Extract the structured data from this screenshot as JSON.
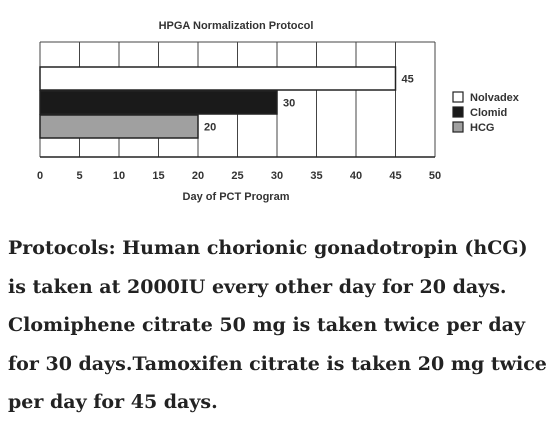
{
  "chart_data": {
    "type": "bar",
    "orientation": "horizontal",
    "title": "HPGA Normalization Protocol",
    "xlabel": "Day of PCT Program",
    "ylabel": "",
    "xlim": [
      0,
      50
    ],
    "xticks": [
      0,
      5,
      10,
      15,
      20,
      25,
      30,
      35,
      40,
      45,
      50
    ],
    "grid": "vertical",
    "legend_position": "right",
    "series": [
      {
        "name": "Nolvadex",
        "value": 45,
        "label": "45",
        "color": "#ffffff"
      },
      {
        "name": "Clomid",
        "value": 30,
        "label": "30",
        "color": "#1a1a1a"
      },
      {
        "name": "HCG",
        "value": 20,
        "label": "20",
        "color": "#a0a0a0"
      }
    ]
  },
  "caption": {
    "text": "Protocols: Human chorionic gonadotropin (hCG) is taken at 2000IU every other day for 20 days. Clomiphene citrate 50 mg is taken twice per day for 30 days.Tamoxifen citrate is taken 20 mg twice per day for 45 days."
  }
}
